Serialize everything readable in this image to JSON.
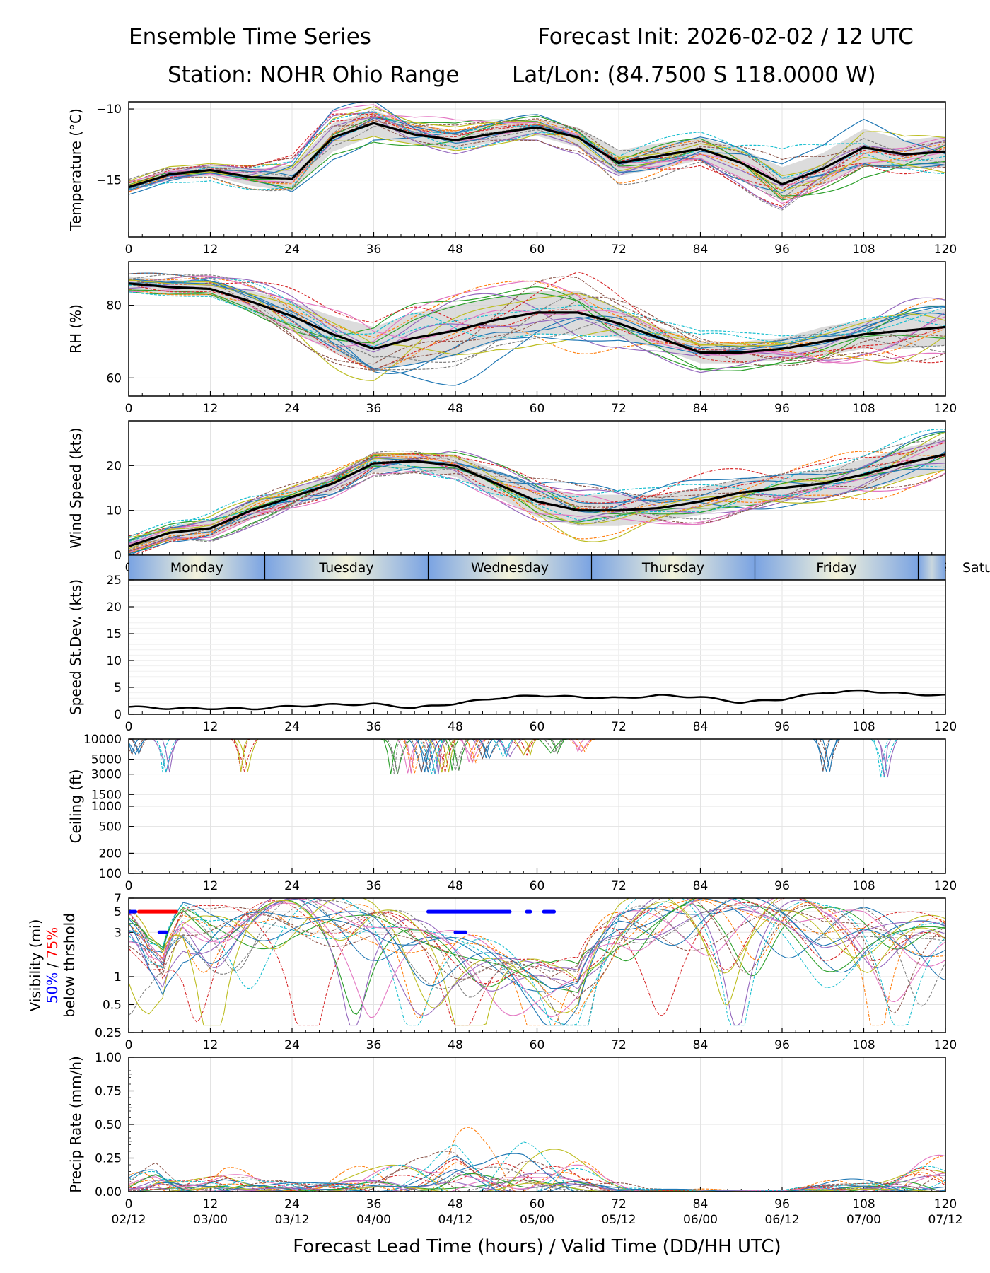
{
  "header": {
    "title": "Ensemble Time Series",
    "init": "Forecast Init: 2026-02-02 / 12 UTC",
    "station": "Station: NOHR Ohio Range",
    "latlon": "Lat/Lon: (84.7500 S 118.0000 W)"
  },
  "chart_data": [
    {
      "id": "temperature",
      "type": "line",
      "ylabel": "Temperature (°C)",
      "ylim": [
        -19,
        -9.5
      ],
      "yticks": [
        -10,
        -15
      ],
      "ytick_labels": [
        "−10",
        "−15"
      ],
      "x": [
        0,
        6,
        12,
        18,
        24,
        30,
        36,
        42,
        48,
        54,
        60,
        66,
        72,
        78,
        84,
        90,
        96,
        102,
        108,
        114,
        120
      ],
      "mean": [
        -15.5,
        -14.6,
        -14.3,
        -14.8,
        -14.9,
        -12.0,
        -11.0,
        -11.8,
        -12.2,
        -11.7,
        -11.3,
        -12.0,
        -13.8,
        -13.3,
        -12.8,
        -13.8,
        -15.3,
        -14.2,
        -12.7,
        -13.2,
        -13.0
      ],
      "spread": [
        0.3,
        0.4,
        0.4,
        0.6,
        0.9,
        1.0,
        0.9,
        0.7,
        0.7,
        0.6,
        0.6,
        0.7,
        0.9,
        0.9,
        0.8,
        1.0,
        1.2,
        1.1,
        1.3,
        1.0,
        1.1
      ],
      "members": 21
    },
    {
      "id": "rh",
      "type": "line",
      "ylabel": "RH (%)",
      "ylim": [
        55,
        92
      ],
      "yticks": [
        60,
        80
      ],
      "ytick_labels": [
        "60",
        "80"
      ],
      "x": [
        0,
        6,
        12,
        18,
        24,
        30,
        36,
        42,
        48,
        54,
        60,
        66,
        72,
        78,
        84,
        90,
        96,
        102,
        108,
        114,
        120
      ],
      "mean": [
        86,
        85,
        84.5,
        81,
        77,
        72,
        68,
        71,
        73,
        76,
        78,
        78,
        75,
        71,
        67,
        67,
        68,
        70,
        72,
        73,
        74
      ],
      "spread": [
        2,
        2,
        2,
        3,
        4,
        5,
        6,
        7,
        7,
        6,
        6,
        6,
        4,
        3,
        3,
        3,
        3,
        4,
        4,
        5,
        5
      ],
      "members": 21
    },
    {
      "id": "wind_speed",
      "type": "line",
      "ylabel": "Wind Speed (kts)",
      "ylim": [
        0,
        30
      ],
      "yticks": [
        0,
        10,
        20
      ],
      "ytick_labels": [
        "0",
        "10",
        "20"
      ],
      "x": [
        0,
        6,
        12,
        18,
        24,
        30,
        36,
        42,
        48,
        54,
        60,
        66,
        72,
        78,
        84,
        90,
        96,
        102,
        108,
        114,
        120
      ],
      "mean": [
        2,
        5,
        6,
        10,
        13,
        16,
        20.5,
        21,
        20,
        16,
        12,
        10,
        10,
        10.5,
        12,
        14,
        15,
        16,
        18,
        20.5,
        22.5
      ],
      "spread": [
        1.5,
        1.5,
        2,
        2,
        2,
        2,
        2,
        2,
        2.5,
        3,
        3.5,
        3.5,
        3.5,
        3,
        3,
        3,
        3,
        3,
        3.5,
        3.5,
        3.5
      ],
      "members": 21
    },
    {
      "id": "speed_stdev",
      "type": "line",
      "ylabel": "Speed St.Dev. (kts)",
      "ylim": [
        0,
        25
      ],
      "yticks": [
        0,
        5,
        10,
        15,
        20,
        25
      ],
      "ytick_labels": [
        "0",
        "5",
        "10",
        "15",
        "20",
        "25"
      ],
      "x": [
        0,
        6,
        12,
        18,
        24,
        30,
        36,
        42,
        48,
        54,
        60,
        66,
        72,
        78,
        84,
        90,
        96,
        102,
        108,
        114,
        120
      ],
      "values": [
        1.4,
        1.1,
        1.1,
        1.0,
        1.5,
        1.8,
        1.9,
        1.2,
        2.0,
        3.0,
        3.5,
        3.2,
        3.0,
        3.5,
        3.2,
        2.2,
        2.8,
        4.0,
        4.4,
        3.8,
        3.5
      ]
    },
    {
      "id": "ceiling",
      "type": "line",
      "ylabel": "Ceiling (ft)",
      "yscale": "log",
      "ylim": [
        100,
        10000
      ],
      "yticks": [
        100,
        200,
        500,
        1000,
        1500,
        3000,
        5000,
        10000
      ],
      "ytick_labels": [
        "100",
        "200",
        "500",
        "1000",
        "1500",
        "3000",
        "5000",
        "10000"
      ],
      "members": 21
    },
    {
      "id": "visibility",
      "type": "line",
      "ylabel": "Visibility (mi)",
      "ylabel_50": "50%",
      "ylabel_sep": " / ",
      "ylabel_75": "75%",
      "ylabel_below": "below thrshold",
      "yscale": "log",
      "ylim": [
        0.25,
        7
      ],
      "yticks": [
        0.25,
        0.5,
        1,
        3,
        5,
        7
      ],
      "ytick_labels": [
        "0.25",
        "0.5",
        "1",
        "3",
        "5",
        "7"
      ],
      "threshold_50": [
        {
          "start": 0,
          "end": 1,
          "value": 5
        },
        {
          "start": 44,
          "end": 56,
          "value": 5
        },
        {
          "start": 58.5,
          "end": 59,
          "value": 5
        },
        {
          "start": 61,
          "end": 62.5,
          "value": 5
        },
        {
          "start": 4.5,
          "end": 5.5,
          "value": 3
        },
        {
          "start": 48,
          "end": 49.5,
          "value": 3
        }
      ],
      "threshold_75": [
        {
          "start": 1.5,
          "end": 7,
          "value": 5
        }
      ],
      "members": 21
    },
    {
      "id": "precip_rate",
      "type": "line",
      "ylabel": "Precip Rate (mm/h)",
      "ylim": [
        0,
        1.0
      ],
      "yticks": [
        0,
        0.25,
        0.5,
        0.75,
        1.0
      ],
      "ytick_labels": [
        "0.00",
        "0.25",
        "0.50",
        "0.75",
        "1.00"
      ],
      "members": 21
    }
  ],
  "xaxis": {
    "ticks": [
      0,
      12,
      24,
      36,
      48,
      60,
      72,
      84,
      96,
      108,
      120
    ],
    "valid_labels": [
      "02/12",
      "03/00",
      "03/12",
      "04/00",
      "04/12",
      "05/00",
      "05/12",
      "06/00",
      "06/12",
      "07/00",
      "07/12"
    ],
    "xlabel": "Forecast Lead Time (hours) / Valid Time (DD/HH UTC)"
  },
  "days": [
    {
      "name": "Monday",
      "start": 0,
      "end": 20
    },
    {
      "name": "Tuesday",
      "start": 20,
      "end": 44
    },
    {
      "name": "Wednesday",
      "start": 44,
      "end": 68
    },
    {
      "name": "Thursday",
      "start": 68,
      "end": 92
    },
    {
      "name": "Friday",
      "start": 92,
      "end": 116
    },
    {
      "name": "Saturday",
      "start": 116,
      "end": 140
    }
  ],
  "colors": {
    "members": [
      "#1f77b4",
      "#ff7f0e",
      "#2ca02c",
      "#d62728",
      "#9467bd",
      "#8c564b",
      "#e377c2",
      "#7f7f7f",
      "#bcbd22",
      "#17becf"
    ],
    "mean": "#000000",
    "band": "#d0d0d0",
    "threshold_50": "#0000ff",
    "threshold_75": "#ff0000",
    "day_center": "#f3f3dc",
    "day_edge": "#7aa3e2"
  }
}
